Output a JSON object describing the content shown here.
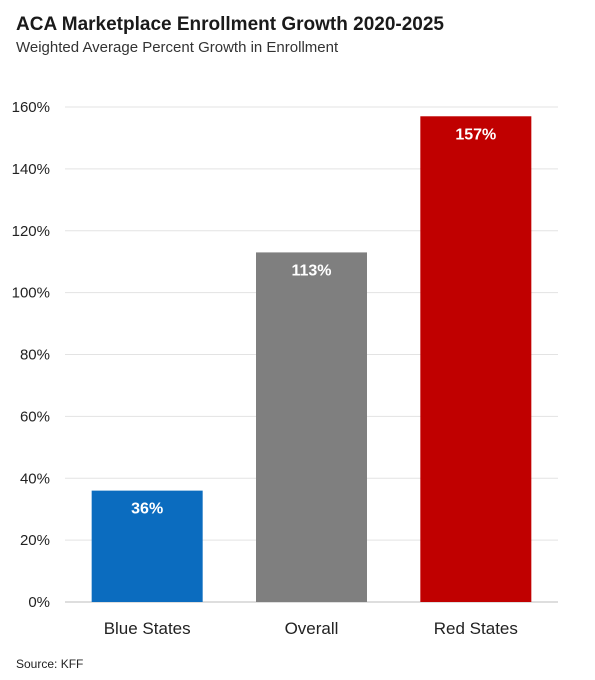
{
  "chart_data": {
    "type": "bar",
    "title": "ACA Marketplace Enrollment Growth 2020-2025",
    "subtitle": "Weighted Average Percent Growth in Enrollment",
    "categories": [
      "Blue States",
      "Overall",
      "Red States"
    ],
    "values": [
      36,
      113,
      157
    ],
    "data_labels": [
      "36%",
      "113%",
      "157%"
    ],
    "colors": [
      "#0b6cbf",
      "#7f7f7f",
      "#c00000"
    ],
    "ylim": [
      0,
      160
    ],
    "yticks": [
      0,
      20,
      40,
      60,
      80,
      100,
      120,
      140,
      160
    ],
    "ytick_labels": [
      "0%",
      "20%",
      "40%",
      "60%",
      "80%",
      "100%",
      "120%",
      "140%",
      "160%"
    ],
    "grid": true,
    "legend": "none",
    "source": "Source: KFF"
  }
}
